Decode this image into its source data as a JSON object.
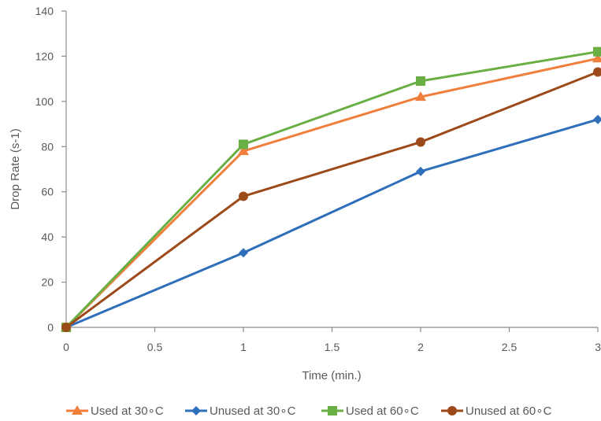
{
  "chart_data": {
    "type": "line",
    "xlabel": "Time (min.)",
    "ylabel": "Drop Rate (s-1)",
    "xlim": [
      0,
      3
    ],
    "ylim": [
      0,
      140
    ],
    "x_ticks": [
      "0",
      "0.5",
      "1",
      "1.5",
      "2",
      "2.5",
      "3"
    ],
    "y_ticks": [
      "0",
      "20",
      "40",
      "60",
      "80",
      "100",
      "120",
      "140"
    ],
    "grid": false,
    "legend_position": "bottom",
    "x": [
      0,
      1,
      2,
      3
    ],
    "series": [
      {
        "name": "Used at 30∘C",
        "values": [
          0,
          78,
          102,
          119
        ],
        "color": "#f07f3c",
        "marker": "triangle"
      },
      {
        "name": "Unused at 30∘C",
        "values": [
          0,
          33,
          69,
          92
        ],
        "color": "#2f6eba",
        "marker": "diamond"
      },
      {
        "name": "Used at 60∘C",
        "values": [
          0,
          81,
          109,
          122
        ],
        "color": "#6aaf44",
        "marker": "square"
      },
      {
        "name": "Unused at 60∘C",
        "values": [
          0,
          58,
          82,
          113
        ],
        "color": "#9c4a1a",
        "marker": "circle"
      }
    ]
  }
}
